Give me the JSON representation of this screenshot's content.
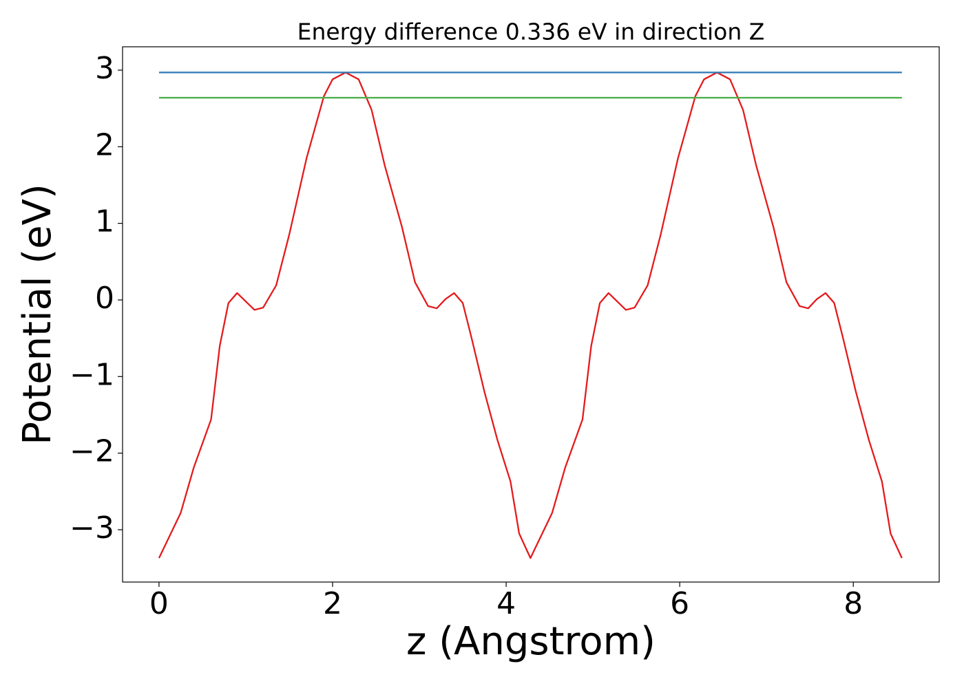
{
  "chart_data": {
    "type": "line",
    "title": "Energy difference 0.336 eV in direction Z",
    "x_label": "z (Angstrom)",
    "y_label": "Potential (eV)",
    "xlim": [
      -0.42,
      8.99
    ],
    "ylim": [
      -3.683,
      3.305
    ],
    "xticks": [
      0,
      2,
      4,
      6,
      8
    ],
    "yticks": [
      {
        "value": -3,
        "label": "−3"
      },
      {
        "value": -2,
        "label": "−2"
      },
      {
        "value": -1,
        "label": "−1"
      },
      0,
      1,
      2,
      3
    ],
    "grid": false,
    "series": [
      {
        "color": "#e41a1c",
        "x": [
          0,
          0.25,
          0.4,
          0.6,
          0.7,
          0.8,
          0.9,
          1.0,
          1.1,
          1.2,
          1.35,
          1.5,
          1.7,
          1.9,
          2.0,
          2.15,
          2.3,
          2.45,
          2.6,
          2.8,
          2.95,
          3.1,
          3.2,
          3.3,
          3.4,
          3.5,
          3.6,
          3.75,
          3.9,
          4.05,
          4.15,
          4.28,
          4.53,
          4.68,
          4.88,
          4.98,
          5.08,
          5.18,
          5.28,
          5.38,
          5.48,
          5.63,
          5.78,
          5.98,
          6.18,
          6.28,
          6.43,
          6.58,
          6.73,
          6.88,
          7.08,
          7.23,
          7.38,
          7.48,
          7.58,
          7.68,
          7.78,
          7.88,
          8.03,
          8.18,
          8.33,
          8.43,
          8.56
        ],
        "values": [
          -3.37,
          -2.78,
          -2.19,
          -1.56,
          -0.6,
          -0.04,
          0.09,
          -0.02,
          -0.13,
          -0.1,
          0.19,
          0.85,
          1.85,
          2.66,
          2.88,
          2.97,
          2.88,
          2.48,
          1.76,
          0.95,
          0.23,
          -0.08,
          -0.11,
          0.01,
          0.09,
          -0.04,
          -0.49,
          -1.2,
          -1.83,
          -2.37,
          -3.05,
          -3.37,
          -2.78,
          -2.19,
          -1.56,
          -0.6,
          -0.04,
          0.09,
          -0.02,
          -0.13,
          -0.1,
          0.19,
          0.85,
          1.85,
          2.66,
          2.88,
          2.97,
          2.88,
          2.48,
          1.76,
          0.95,
          0.23,
          -0.08,
          -0.11,
          0.01,
          0.09,
          -0.04,
          -0.49,
          -1.2,
          -1.83,
          -2.37,
          -3.05,
          -3.37
        ]
      },
      {
        "color": "#377eb8",
        "x": [
          0,
          8.56
        ],
        "values": [
          2.97,
          2.97
        ]
      },
      {
        "color": "#4daf4a",
        "x": [
          0,
          8.56
        ],
        "values": [
          2.64,
          2.64
        ]
      }
    ]
  }
}
